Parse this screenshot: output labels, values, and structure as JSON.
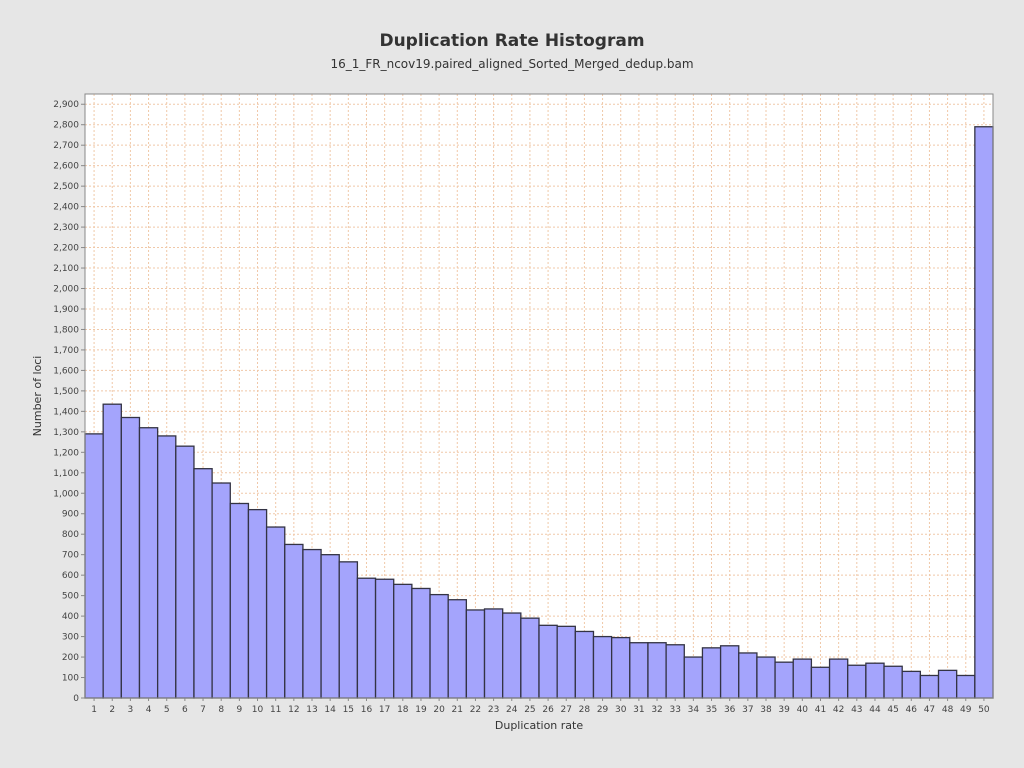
{
  "chart_data": {
    "type": "bar",
    "title": "Duplication Rate Histogram",
    "subtitle": "16_1_FR_ncov19.paired_aligned_Sorted_Merged_dedup.bam",
    "xlabel": "Duplication rate",
    "ylabel": "Number of loci",
    "ylim": [
      0,
      2950
    ],
    "grid": true,
    "categories": [
      "1",
      "2",
      "3",
      "4",
      "5",
      "6",
      "7",
      "8",
      "9",
      "10",
      "11",
      "12",
      "13",
      "14",
      "15",
      "16",
      "17",
      "18",
      "19",
      "20",
      "21",
      "22",
      "23",
      "24",
      "25",
      "26",
      "27",
      "28",
      "29",
      "30",
      "31",
      "32",
      "33",
      "34",
      "35",
      "36",
      "37",
      "38",
      "39",
      "40",
      "41",
      "42",
      "43",
      "44",
      "45",
      "46",
      "47",
      "48",
      "49",
      "50"
    ],
    "values": [
      1290,
      1435,
      1370,
      1320,
      1280,
      1230,
      1120,
      1050,
      950,
      920,
      835,
      750,
      725,
      700,
      665,
      585,
      580,
      555,
      535,
      505,
      480,
      430,
      435,
      415,
      390,
      355,
      350,
      325,
      300,
      295,
      270,
      270,
      260,
      200,
      245,
      255,
      220,
      200,
      175,
      190,
      150,
      190,
      160,
      170,
      155,
      130,
      110,
      135,
      110,
      2790
    ],
    "yticks": [
      {
        "value": 0,
        "label": "0"
      },
      {
        "value": 100,
        "label": "100"
      },
      {
        "value": 200,
        "label": "200"
      },
      {
        "value": 300,
        "label": "300"
      },
      {
        "value": 400,
        "label": "400"
      },
      {
        "value": 500,
        "label": "500"
      },
      {
        "value": 600,
        "label": "600"
      },
      {
        "value": 700,
        "label": "700"
      },
      {
        "value": 800,
        "label": "800"
      },
      {
        "value": 900,
        "label": "900"
      },
      {
        "value": 1000,
        "label": "1,000"
      },
      {
        "value": 1100,
        "label": "1,100"
      },
      {
        "value": 1200,
        "label": "1,200"
      },
      {
        "value": 1300,
        "label": "1,300"
      },
      {
        "value": 1400,
        "label": "1,400"
      },
      {
        "value": 1500,
        "label": "1,500"
      },
      {
        "value": 1600,
        "label": "1,600"
      },
      {
        "value": 1700,
        "label": "1,700"
      },
      {
        "value": 1800,
        "label": "1,800"
      },
      {
        "value": 1900,
        "label": "1,900"
      },
      {
        "value": 2000,
        "label": "2,000"
      },
      {
        "value": 2100,
        "label": "2,100"
      },
      {
        "value": 2200,
        "label": "2,200"
      },
      {
        "value": 2300,
        "label": "2,300"
      },
      {
        "value": 2400,
        "label": "2,400"
      },
      {
        "value": 2500,
        "label": "2,500"
      },
      {
        "value": 2600,
        "label": "2,600"
      },
      {
        "value": 2700,
        "label": "2,700"
      },
      {
        "value": 2800,
        "label": "2,800"
      },
      {
        "value": 2900,
        "label": "2,900"
      }
    ],
    "colors": {
      "bar_fill": "#a4a4fc",
      "bar_stroke": "#333344",
      "grid": "#f0c8a8",
      "plot_bg": "#ffffff",
      "page_bg": "#e6e6e6"
    }
  }
}
